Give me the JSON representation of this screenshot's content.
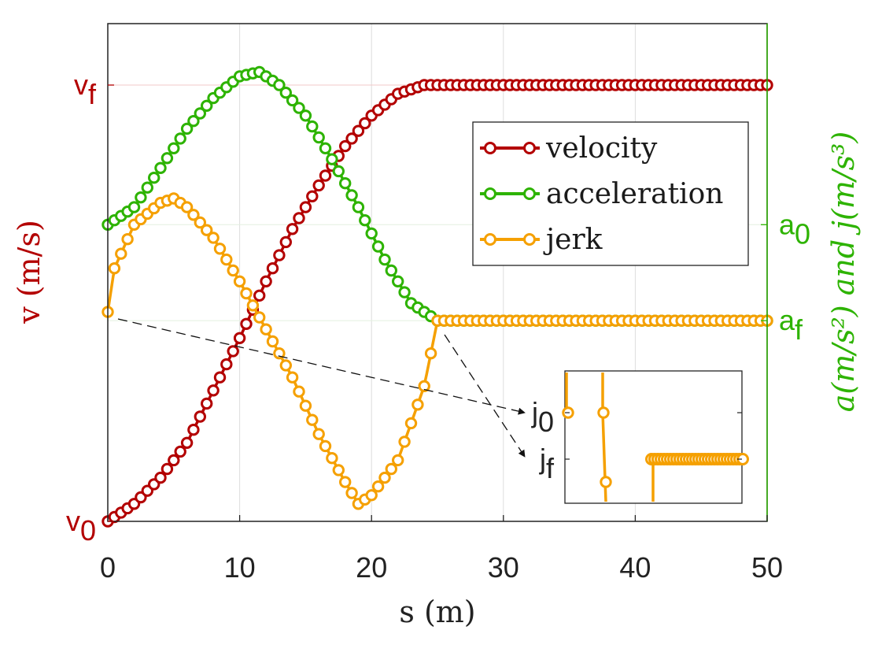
{
  "chart_data": {
    "type": "line",
    "xlabel": "s (m)",
    "ylabel_left": "v (m/s)",
    "ylabel_right": "a(m/s²) and j(m/s³)",
    "xlim": [
      0,
      50
    ],
    "x_ticks": [
      0,
      10,
      20,
      30,
      40,
      50
    ],
    "left_ticks": [
      {
        "base": "v",
        "sub": "f",
        "value": 1
      },
      {
        "base": "v",
        "sub": "0",
        "value": 0
      }
    ],
    "right_ticks": [
      {
        "base": "a",
        "sub": "0",
        "value": 0.68
      },
      {
        "base": "a",
        "sub": "f",
        "value": 0.46
      }
    ],
    "grid": true,
    "legend_position": "upper-right",
    "colors": {
      "velocity": "#b30000",
      "acceleration": "#2db300",
      "jerk": "#f5a000",
      "axis": "#222222",
      "grid": "#dddddd"
    },
    "series": [
      {
        "name": "velocity",
        "axis": "left",
        "x": [
          0,
          2,
          4,
          6,
          8,
          10,
          12,
          14,
          16,
          18,
          20,
          22,
          24,
          26,
          30,
          40,
          50
        ],
        "y": [
          0.0,
          0.04,
          0.1,
          0.18,
          0.3,
          0.42,
          0.55,
          0.67,
          0.77,
          0.86,
          0.93,
          0.98,
          1.0,
          1.0,
          1.0,
          1.0,
          1.0
        ]
      },
      {
        "name": "acceleration",
        "axis": "right",
        "x": [
          0,
          2,
          4,
          6,
          8,
          10,
          11.5,
          13,
          15,
          17,
          19,
          21,
          23,
          25,
          30,
          40,
          50
        ],
        "y": [
          0.68,
          0.72,
          0.81,
          0.9,
          0.97,
          1.02,
          1.03,
          1.0,
          0.93,
          0.83,
          0.72,
          0.6,
          0.5,
          0.46,
          0.46,
          0.46,
          0.46
        ]
      },
      {
        "name": "jerk",
        "axis": "right",
        "x": [
          0,
          0.5,
          2,
          4,
          5,
          6,
          8,
          10,
          12,
          14,
          16,
          18,
          19,
          20,
          22,
          24,
          25,
          30,
          40,
          50
        ],
        "y": [
          0.48,
          0.58,
          0.68,
          0.73,
          0.74,
          0.72,
          0.65,
          0.55,
          0.44,
          0.33,
          0.2,
          0.09,
          0.04,
          0.06,
          0.14,
          0.31,
          0.46,
          0.46,
          0.46,
          0.46
        ]
      }
    ],
    "inset": {
      "tick_labels": [
        {
          "base": "j",
          "sub": "0"
        },
        {
          "base": "j",
          "sub": "f"
        }
      ]
    }
  }
}
